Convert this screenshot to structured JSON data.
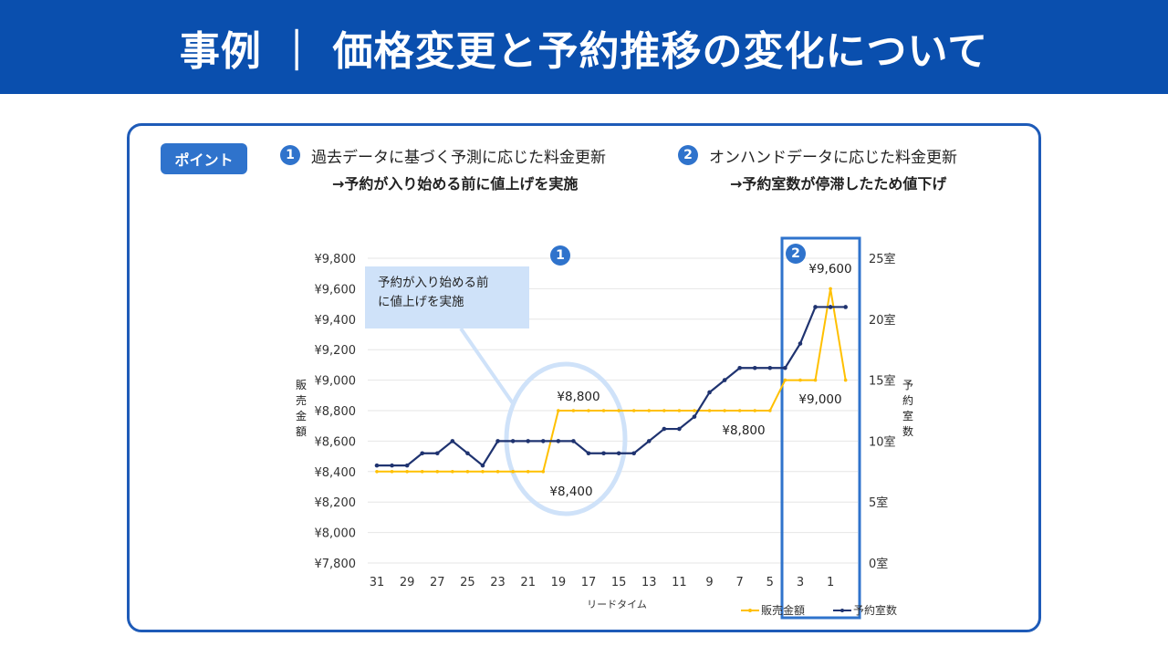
{
  "title": "事例 ｜ 価格変更と予約推移の変化について",
  "point_badge": "ポイント",
  "points": [
    {
      "number": "1",
      "heading": "過去データに基づく予測に応じた料金更新",
      "detail": "→予約が入り始める前に値上げを実施"
    },
    {
      "number": "2",
      "heading": "オンハンドデータに応じた料金更新",
      "detail": "→予約室数が停滞したため値下げ"
    }
  ],
  "callout": {
    "line1": "予約が入り始める前",
    "line2": "に値上げを実施"
  },
  "colors": {
    "header": "#0a4fae",
    "accent": "#2f73cc",
    "price": "#ffc000",
    "rooms": "#1f3370",
    "highlight": "#cfe2f9"
  },
  "chart_data": {
    "type": "line",
    "xlabel": "リードタイム",
    "ylabel_left": "販売金額",
    "ylabel_right": "予約室数",
    "x": [
      31,
      30,
      29,
      28,
      27,
      26,
      25,
      24,
      23,
      22,
      21,
      20,
      19,
      18,
      17,
      16,
      15,
      14,
      13,
      12,
      11,
      10,
      9,
      8,
      7,
      6,
      5,
      4,
      3,
      2,
      1,
      0
    ],
    "x_tick_labels": [
      "31",
      "29",
      "27",
      "25",
      "23",
      "21",
      "19",
      "17",
      "15",
      "13",
      "11",
      "9",
      "7",
      "5",
      "3",
      "1"
    ],
    "x_reversed": true,
    "left_axis": {
      "range": [
        7800,
        9800
      ],
      "ticks": [
        "¥7,800",
        "¥8,000",
        "¥8,200",
        "¥8,400",
        "¥8,600",
        "¥8,800",
        "¥9,000",
        "¥9,200",
        "¥9,400",
        "¥9,600",
        "¥9,800"
      ]
    },
    "right_axis": {
      "range": [
        0,
        25
      ],
      "ticks": [
        "0室",
        "5室",
        "10室",
        "15室",
        "20室",
        "25室"
      ]
    },
    "grid": true,
    "legend_position": "bottom-right",
    "series": [
      {
        "name": "販売金額",
        "axis": "left",
        "color": "#ffc000",
        "values": [
          8400,
          8400,
          8400,
          8400,
          8400,
          8400,
          8400,
          8400,
          8400,
          8400,
          8400,
          8400,
          8800,
          8800,
          8800,
          8800,
          8800,
          8800,
          8800,
          8800,
          8800,
          8800,
          8800,
          8800,
          8800,
          8800,
          8800,
          9000,
          9000,
          9000,
          9600,
          9000
        ]
      },
      {
        "name": "予約室数",
        "axis": "right",
        "color": "#1f3370",
        "values": [
          8,
          8,
          8,
          9,
          9,
          10,
          9,
          8,
          10,
          10,
          10,
          10,
          10,
          10,
          9,
          9,
          9,
          9,
          10,
          11,
          11,
          12,
          14,
          15,
          16,
          16,
          16,
          16,
          18,
          21,
          21,
          21
        ]
      }
    ],
    "annotations": [
      {
        "text": "¥8,800"
      },
      {
        "text": "¥8,400"
      },
      {
        "text": "¥8,800"
      },
      {
        "text": "¥9,000"
      },
      {
        "text": "¥9,600"
      }
    ],
    "markers": [
      "1",
      "2"
    ]
  }
}
